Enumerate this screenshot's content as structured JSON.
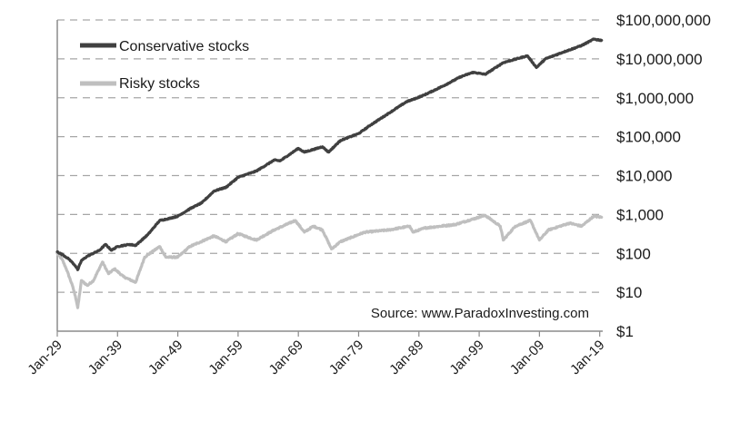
{
  "chart_data": {
    "type": "line",
    "title": "",
    "xlabel": "",
    "ylabel": "",
    "y_scale": "log",
    "ylim": [
      1,
      100000000
    ],
    "xlim": [
      1929,
      2019.5
    ],
    "grid": "horizontal-dashed",
    "legend_position": "top-left",
    "y_ticks": [
      {
        "value": 1,
        "label": "$1"
      },
      {
        "value": 10,
        "label": "$10"
      },
      {
        "value": 100,
        "label": "$100"
      },
      {
        "value": 1000,
        "label": "$1,000"
      },
      {
        "value": 10000,
        "label": "$10,000"
      },
      {
        "value": 100000,
        "label": "$100,000"
      },
      {
        "value": 1000000,
        "label": "$1,000,000"
      },
      {
        "value": 10000000,
        "label": "$10,000,000"
      },
      {
        "value": 100000000,
        "label": "$100,000,000"
      }
    ],
    "x_ticks": [
      {
        "value": 1929,
        "label": "Jan-29"
      },
      {
        "value": 1939,
        "label": "Jan-39"
      },
      {
        "value": 1949,
        "label": "Jan-49"
      },
      {
        "value": 1959,
        "label": "Jan-59"
      },
      {
        "value": 1969,
        "label": "Jan-69"
      },
      {
        "value": 1979,
        "label": "Jan-79"
      },
      {
        "value": 1989,
        "label": "Jan-89"
      },
      {
        "value": 1999,
        "label": "Jan-99"
      },
      {
        "value": 2009,
        "label": "Jan-09"
      },
      {
        "value": 2019,
        "label": "Jan-19"
      }
    ],
    "series": [
      {
        "name": "Conservative stocks",
        "color": "#404040",
        "points": [
          [
            1929.0,
            110
          ],
          [
            1930.0,
            90
          ],
          [
            1931.0,
            70
          ],
          [
            1932.0,
            48
          ],
          [
            1932.4,
            38
          ],
          [
            1933.0,
            65
          ],
          [
            1934.0,
            85
          ],
          [
            1936.0,
            120
          ],
          [
            1937.0,
            170
          ],
          [
            1938.0,
            120
          ],
          [
            1939.0,
            150
          ],
          [
            1941.0,
            170
          ],
          [
            1942.0,
            160
          ],
          [
            1944.0,
            300
          ],
          [
            1946.0,
            700
          ],
          [
            1947.0,
            750
          ],
          [
            1949.0,
            900
          ],
          [
            1951.0,
            1400
          ],
          [
            1953.0,
            2000
          ],
          [
            1955.0,
            4000
          ],
          [
            1957.0,
            5000
          ],
          [
            1959.0,
            9000
          ],
          [
            1962.0,
            13000
          ],
          [
            1965.0,
            25000
          ],
          [
            1966.0,
            24000
          ],
          [
            1969.0,
            50000
          ],
          [
            1970.0,
            40000
          ],
          [
            1973.0,
            55000
          ],
          [
            1974.0,
            40000
          ],
          [
            1976.0,
            80000
          ],
          [
            1979.0,
            120000
          ],
          [
            1981.0,
            200000
          ],
          [
            1984.0,
            400000
          ],
          [
            1987.0,
            800000
          ],
          [
            1988.0,
            900000
          ],
          [
            1990.0,
            1200000
          ],
          [
            1993.0,
            2000000
          ],
          [
            1996.0,
            3500000
          ],
          [
            1998.0,
            4500000
          ],
          [
            2000.0,
            4000000
          ],
          [
            2003.0,
            8000000
          ],
          [
            2007.0,
            12000000
          ],
          [
            2008.5,
            6000000
          ],
          [
            2010.0,
            10000000
          ],
          [
            2013.0,
            15000000
          ],
          [
            2016.0,
            22000000
          ],
          [
            2018.0,
            32000000
          ],
          [
            2019.3,
            30000000
          ]
        ]
      },
      {
        "name": "Risky stocks",
        "color": "#bfbfbf",
        "points": [
          [
            1929.0,
            100
          ],
          [
            1929.8,
            70
          ],
          [
            1930.5,
            40
          ],
          [
            1931.5,
            15
          ],
          [
            1932.0,
            8
          ],
          [
            1932.4,
            4
          ],
          [
            1933.0,
            20
          ],
          [
            1934.0,
            15
          ],
          [
            1935.0,
            20
          ],
          [
            1936.5,
            60
          ],
          [
            1937.5,
            30
          ],
          [
            1938.5,
            40
          ],
          [
            1940.0,
            25
          ],
          [
            1942.0,
            18
          ],
          [
            1943.5,
            80
          ],
          [
            1946.0,
            150
          ],
          [
            1947.0,
            80
          ],
          [
            1949.0,
            80
          ],
          [
            1951.0,
            150
          ],
          [
            1955.0,
            280
          ],
          [
            1957.0,
            200
          ],
          [
            1959.0,
            320
          ],
          [
            1962.0,
            220
          ],
          [
            1965.0,
            400
          ],
          [
            1968.5,
            700
          ],
          [
            1970.0,
            350
          ],
          [
            1971.5,
            500
          ],
          [
            1973.0,
            400
          ],
          [
            1974.5,
            130
          ],
          [
            1976.0,
            200
          ],
          [
            1980.0,
            350
          ],
          [
            1984.0,
            400
          ],
          [
            1987.5,
            500
          ],
          [
            1988.0,
            350
          ],
          [
            1990.0,
            450
          ],
          [
            1995.0,
            550
          ],
          [
            2000.0,
            950
          ],
          [
            2002.5,
            500
          ],
          [
            2003.0,
            220
          ],
          [
            2005.0,
            500
          ],
          [
            2007.5,
            700
          ],
          [
            2009.0,
            220
          ],
          [
            2010.5,
            400
          ],
          [
            2014.0,
            600
          ],
          [
            2016.0,
            500
          ],
          [
            2018.0,
            900
          ],
          [
            2019.3,
            850
          ]
        ]
      }
    ],
    "annotation": "Source: www.ParadoxInvesting.com"
  }
}
